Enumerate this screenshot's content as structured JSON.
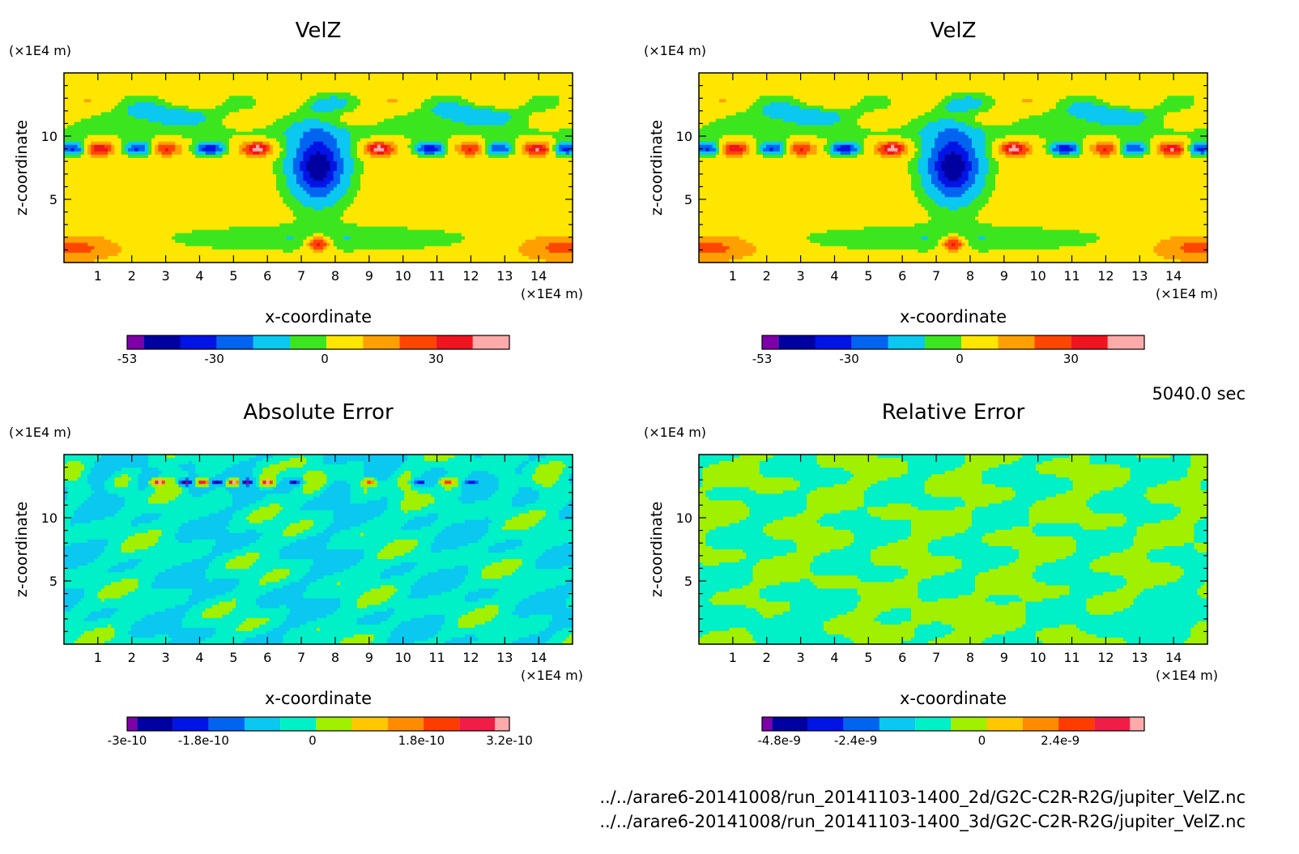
{
  "timestamp": "5040.0 sec",
  "files": [
    "../../arare6-20141008/run_20141103-1400_2d/G2C-C2R-R2G/jupiter_VelZ.nc",
    "../../arare6-20141008/run_20141103-1400_3d/G2C-C2R-R2G/jupiter_VelZ.nc"
  ],
  "chart_data": [
    {
      "type": "heatmap",
      "title": "VelZ",
      "xlabel": "x-coordinate",
      "ylabel": "z-coordinate",
      "x_unit": "(×1E4 m)",
      "y_unit": "(×1E4 m)",
      "xlim": [
        0,
        15
      ],
      "ylim": [
        0,
        15
      ],
      "x_ticks": [
        "1",
        "2",
        "3",
        "4",
        "5",
        "6",
        "7",
        "8",
        "9",
        "10",
        "11",
        "12",
        "13",
        "14"
      ],
      "y_ticks": [
        "5",
        "10"
      ],
      "colorbar": {
        "colors": [
          "#7d00a8",
          "#0000a0",
          "#0014e6",
          "#0064f0",
          "#0ac8f0",
          "#3ce61e",
          "#ffe600",
          "#ffa000",
          "#ff4600",
          "#f0141e",
          "#ffaaaa"
        ],
        "tick_labels": [
          "-53",
          "-30",
          "0",
          "30"
        ]
      },
      "pattern": "velz"
    },
    {
      "type": "heatmap",
      "title": "VelZ",
      "xlabel": "x-coordinate",
      "ylabel": "z-coordinate",
      "x_unit": "(×1E4 m)",
      "y_unit": "(×1E4 m)",
      "xlim": [
        0,
        15
      ],
      "ylim": [
        0,
        15
      ],
      "x_ticks": [
        "1",
        "2",
        "3",
        "4",
        "5",
        "6",
        "7",
        "8",
        "9",
        "10",
        "11",
        "12",
        "13",
        "14"
      ],
      "y_ticks": [
        "5",
        "10"
      ],
      "colorbar": {
        "colors": [
          "#7d00a8",
          "#0000a0",
          "#0014e6",
          "#0064f0",
          "#0ac8f0",
          "#3ce61e",
          "#ffe600",
          "#ffa000",
          "#ff4600",
          "#f0141e",
          "#ffaaaa"
        ],
        "tick_labels": [
          "-53",
          "-30",
          "0",
          "30"
        ]
      },
      "pattern": "velz"
    },
    {
      "type": "heatmap",
      "title": "Absolute Error",
      "xlabel": "x-coordinate",
      "ylabel": "z-coordinate",
      "x_unit": "(×1E4 m)",
      "y_unit": "(×1E4 m)",
      "xlim": [
        0,
        15
      ],
      "ylim": [
        0,
        15
      ],
      "x_ticks": [
        "1",
        "2",
        "3",
        "4",
        "5",
        "6",
        "7",
        "8",
        "9",
        "10",
        "11",
        "12",
        "13",
        "14"
      ],
      "y_ticks": [
        "5",
        "10"
      ],
      "colorbar": {
        "colors": [
          "#7d00a8",
          "#0000a0",
          "#0014e6",
          "#0064f0",
          "#0ac8f0",
          "#00f0c8",
          "#a0f000",
          "#ffc800",
          "#ff8c00",
          "#ff3c00",
          "#f01e46",
          "#ffaaaa"
        ],
        "tick_labels": [
          "-3e-10",
          "-1.8e-10",
          "0",
          "1.8e-10",
          "3.2e-10"
        ]
      },
      "pattern": "abs"
    },
    {
      "type": "heatmap",
      "title": "Relative Error",
      "xlabel": "x-coordinate",
      "ylabel": "z-coordinate",
      "x_unit": "(×1E4 m)",
      "y_unit": "(×1E4 m)",
      "xlim": [
        0,
        15
      ],
      "ylim": [
        0,
        15
      ],
      "x_ticks": [
        "1",
        "2",
        "3",
        "4",
        "5",
        "6",
        "7",
        "8",
        "9",
        "10",
        "11",
        "12",
        "13",
        "14"
      ],
      "y_ticks": [
        "5",
        "10"
      ],
      "colorbar": {
        "colors": [
          "#7d00a8",
          "#0000a0",
          "#0014e6",
          "#0064f0",
          "#0ac8f0",
          "#00f0c8",
          "#a0f000",
          "#ffc800",
          "#ff8c00",
          "#ff3c00",
          "#f01e46",
          "#ffaaaa"
        ],
        "tick_labels": [
          "-4.8e-9",
          "-2.4e-9",
          "0",
          "2.4e-9"
        ]
      },
      "pattern": "rel"
    }
  ]
}
